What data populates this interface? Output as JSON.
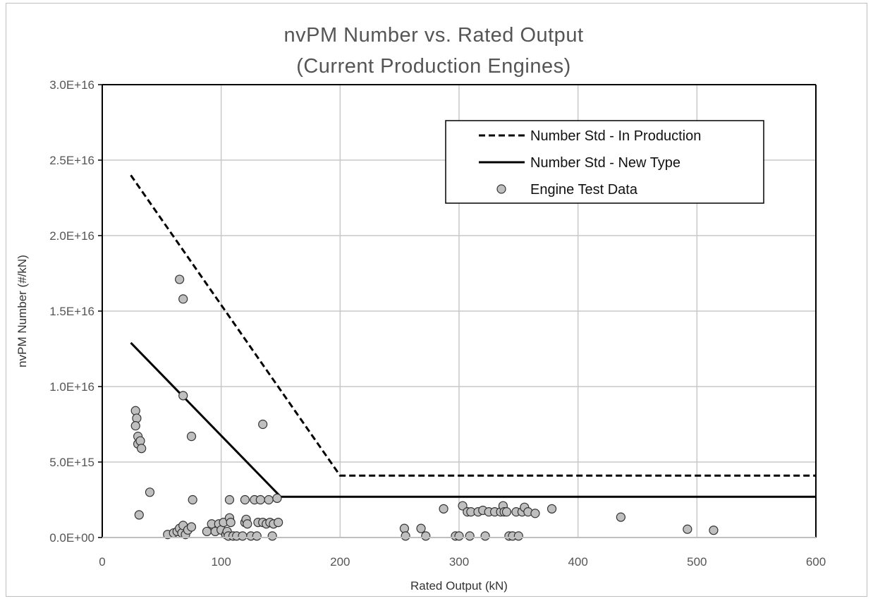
{
  "chart_data": {
    "type": "scatter",
    "title": "nvPM Number vs. Rated Output",
    "subtitle": "(Current Production Engines)",
    "xlabel": "Rated Output (kN)",
    "ylabel": "nvPM Number (#/kN)",
    "xlim": [
      0,
      600
    ],
    "ylim": [
      0,
      3e+16
    ],
    "x_ticks": [
      0,
      100,
      200,
      300,
      400,
      500,
      600
    ],
    "x_tick_labels": [
      "0",
      "100",
      "200",
      "300",
      "400",
      "500",
      "600"
    ],
    "y_ticks": [
      0,
      5000000000000000.0,
      1e+16,
      1.5e+16,
      2e+16,
      2.5e+16,
      3e+16
    ],
    "y_tick_labels": [
      "0.0E+00",
      "5.0E+15",
      "1.0E+16",
      "1.5E+16",
      "2.0E+16",
      "2.5E+16",
      "3.0E+16"
    ],
    "grid": true,
    "legend_position": "top-right",
    "series": [
      {
        "name": "Number Std - In Production",
        "style": "dashed-line",
        "color": "#000000",
        "points": [
          [
            24,
            2.4e+16
          ],
          [
            200,
            4100000000000000.0
          ],
          [
            600,
            4100000000000000.0
          ]
        ]
      },
      {
        "name": "Number Std - New Type",
        "style": "solid-line",
        "color": "#000000",
        "points": [
          [
            24,
            1.29e+16
          ],
          [
            150,
            2700000000000000.0
          ],
          [
            600,
            2700000000000000.0
          ]
        ]
      },
      {
        "name": "Engine Test Data",
        "style": "marker",
        "color": "#bfbfbf",
        "edge_color": "#333333",
        "points": [
          [
            28,
            8400000000000000.0
          ],
          [
            29,
            7900000000000000.0
          ],
          [
            28,
            7400000000000000.0
          ],
          [
            30,
            6700000000000000.0
          ],
          [
            30,
            6200000000000000.0
          ],
          [
            32,
            6400000000000000.0
          ],
          [
            33,
            5900000000000000.0
          ],
          [
            31,
            1500000000000000.0
          ],
          [
            40,
            3000000000000000.0
          ],
          [
            55,
            200000000000000.0
          ],
          [
            60,
            300000000000000.0
          ],
          [
            63,
            400000000000000.0
          ],
          [
            65,
            600000000000000.0
          ],
          [
            67,
            300000000000000.0
          ],
          [
            68,
            800000000000000.0
          ],
          [
            70,
            200000000000000.0
          ],
          [
            72,
            500000000000000.0
          ],
          [
            75,
            700000000000000.0
          ],
          [
            65,
            1.71e+16
          ],
          [
            68,
            1.58e+16
          ],
          [
            68,
            9400000000000000.0
          ],
          [
            75,
            6700000000000000.0
          ],
          [
            76,
            2500000000000000.0
          ],
          [
            135,
            7500000000000000.0
          ],
          [
            88,
            400000000000000.0
          ],
          [
            92,
            900000000000000.0
          ],
          [
            95,
            400000000000000.0
          ],
          [
            98,
            900000000000000.0
          ],
          [
            100,
            500000000000000.0
          ],
          [
            102,
            1000000000000000.0
          ],
          [
            104,
            200000000000000.0
          ],
          [
            105,
            400000000000000.0
          ],
          [
            106,
            100000000000000.0
          ],
          [
            107,
            1300000000000000.0
          ],
          [
            107,
            2500000000000000.0
          ],
          [
            108,
            1000000000000000.0
          ],
          [
            110,
            100000000000000.0
          ],
          [
            113,
            100000000000000.0
          ],
          [
            118,
            100000000000000.0
          ],
          [
            120,
            1000000000000000.0
          ],
          [
            120,
            2500000000000000.0
          ],
          [
            121,
            1200000000000000.0
          ],
          [
            122,
            900000000000000.0
          ],
          [
            125,
            100000000000000.0
          ],
          [
            128,
            2500000000000000.0
          ],
          [
            130,
            100000000000000.0
          ],
          [
            131,
            1000000000000000.0
          ],
          [
            133,
            2500000000000000.0
          ],
          [
            135,
            1000000000000000.0
          ],
          [
            138,
            900000000000000.0
          ],
          [
            140,
            2500000000000000.0
          ],
          [
            141,
            1000000000000000.0
          ],
          [
            143,
            100000000000000.0
          ],
          [
            144,
            900000000000000.0
          ],
          [
            147,
            2600000000000000.0
          ],
          [
            148,
            1000000000000000.0
          ],
          [
            254,
            600000000000000.0
          ],
          [
            255,
            100000000000000.0
          ],
          [
            268,
            600000000000000.0
          ],
          [
            272,
            100000000000000.0
          ],
          [
            287,
            1900000000000000.0
          ],
          [
            297,
            100000000000000.0
          ],
          [
            300,
            100000000000000.0
          ],
          [
            303,
            2100000000000000.0
          ],
          [
            307,
            1700000000000000.0
          ],
          [
            309,
            100000000000000.0
          ],
          [
            310,
            1700000000000000.0
          ],
          [
            316,
            1700000000000000.0
          ],
          [
            320,
            1800000000000000.0
          ],
          [
            322,
            100000000000000.0
          ],
          [
            325,
            1700000000000000.0
          ],
          [
            330,
            1700000000000000.0
          ],
          [
            335,
            1700000000000000.0
          ],
          [
            337,
            2100000000000000.0
          ],
          [
            338,
            1700000000000000.0
          ],
          [
            340,
            1700000000000000.0
          ],
          [
            342,
            100000000000000.0
          ],
          [
            345,
            100000000000000.0
          ],
          [
            348,
            1700000000000000.0
          ],
          [
            350,
            100000000000000.0
          ],
          [
            353,
            1700000000000000.0
          ],
          [
            355,
            2000000000000000.0
          ],
          [
            358,
            1700000000000000.0
          ],
          [
            364,
            1600000000000000.0
          ],
          [
            378,
            1900000000000000.0
          ],
          [
            436,
            1350000000000000.0
          ],
          [
            492,
            550000000000000.0
          ],
          [
            514,
            480000000000000.0
          ]
        ]
      }
    ]
  }
}
